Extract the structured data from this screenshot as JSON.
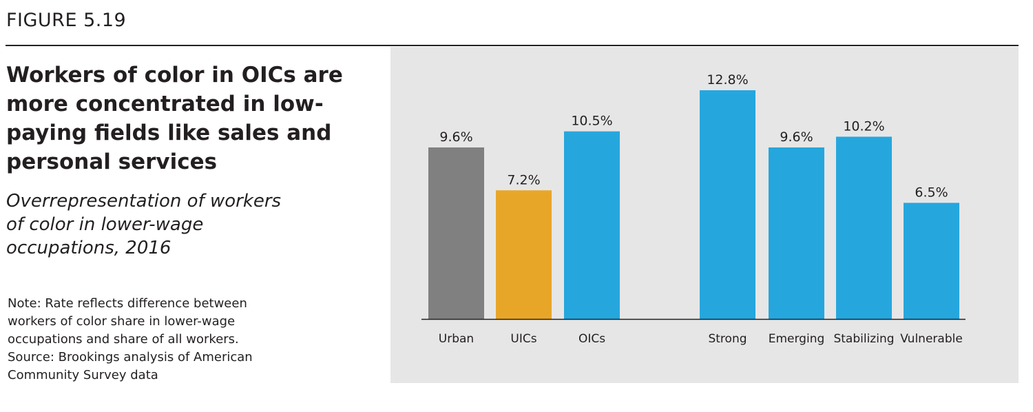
{
  "figure_label": "FIGURE 5.19",
  "title": "Workers of color in OICs are more concentrated in low-paying fields like sales and personal services",
  "subtitle": "Overrepresentation of workers of color in lower-wage occupations, 2016",
  "note": "Note: Rate reflects difference between workers of color share in lower-wage occupations and share of all workers.",
  "source": "Source: Brookings analysis of American Community Survey data",
  "chart_data": {
    "type": "bar",
    "categories": [
      "Urban",
      "UICs",
      "OICs",
      "Strong",
      "Emerging",
      "Stabilizing",
      "Vulnerable"
    ],
    "values": [
      9.6,
      7.2,
      10.5,
      12.8,
      9.6,
      10.2,
      6.5
    ],
    "data_labels": [
      "9.6%",
      "7.2%",
      "10.5%",
      "12.8%",
      "9.6%",
      "10.2%",
      "6.5%"
    ],
    "colors": [
      "#808080",
      "#e8a629",
      "#25a7de",
      "#25a7de",
      "#25a7de",
      "#25a7de",
      "#25a7de"
    ],
    "background": "#e6e6e6",
    "ylim": [
      0,
      12.8
    ],
    "grid": false,
    "y_axis_shown": false
  }
}
